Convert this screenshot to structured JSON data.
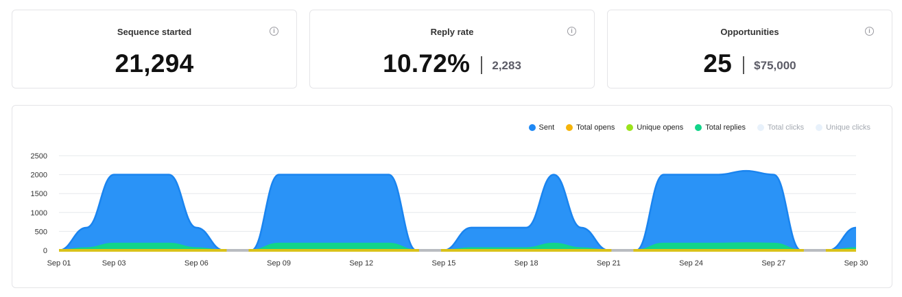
{
  "stats": [
    {
      "label": "Sequence started",
      "value": "21,294",
      "secondary": ""
    },
    {
      "label": "Reply rate",
      "value": "10.72%",
      "secondary": "2,283"
    },
    {
      "label": "Opportunities",
      "value": "25",
      "secondary": "$75,000"
    }
  ],
  "info_icon_glyph": "i",
  "legend": [
    {
      "label": "Sent",
      "color": "#1e88f5",
      "active": true
    },
    {
      "label": "Total opens",
      "color": "#f5b40a",
      "active": true
    },
    {
      "label": "Unique opens",
      "color": "#9be31b",
      "active": true
    },
    {
      "label": "Total replies",
      "color": "#12d48a",
      "active": true
    },
    {
      "label": "Total clicks",
      "color": "#e8f1fb",
      "active": false
    },
    {
      "label": "Unique clicks",
      "color": "#e8f1fb",
      "active": false
    }
  ],
  "chart_data": {
    "type": "area",
    "ylim": [
      0,
      2500
    ],
    "yticks": [
      "0",
      "500",
      "1000",
      "1500",
      "2000",
      "2500"
    ],
    "xticks": [
      "Sep 01",
      "Sep 03",
      "Sep 06",
      "Sep 09",
      "Sep 12",
      "Sep 15",
      "Sep 18",
      "Sep 21",
      "Sep 24",
      "Sep 27",
      "Sep 30"
    ],
    "x": [
      "Sep 01",
      "Sep 02",
      "Sep 03",
      "Sep 04",
      "Sep 05",
      "Sep 06",
      "Sep 07",
      "Sep 08",
      "Sep 09",
      "Sep 10",
      "Sep 11",
      "Sep 12",
      "Sep 13",
      "Sep 14",
      "Sep 15",
      "Sep 16",
      "Sep 17",
      "Sep 18",
      "Sep 19",
      "Sep 20",
      "Sep 21",
      "Sep 22",
      "Sep 23",
      "Sep 24",
      "Sep 25",
      "Sep 26",
      "Sep 27",
      "Sep 28",
      "Sep 29",
      "Sep 30"
    ],
    "series": [
      {
        "name": "Sent",
        "color": "#2a93f7",
        "values": [
          0,
          600,
          2000,
          2000,
          2000,
          600,
          0,
          0,
          2000,
          2000,
          2000,
          2000,
          2000,
          0,
          0,
          600,
          600,
          600,
          2000,
          600,
          0,
          0,
          2000,
          2000,
          2000,
          2100,
          2000,
          0,
          0,
          600
        ]
      },
      {
        "name": "Total replies",
        "color": "#12d48a",
        "values": [
          0,
          60,
          180,
          180,
          180,
          60,
          0,
          0,
          180,
          180,
          180,
          180,
          180,
          0,
          0,
          60,
          60,
          60,
          180,
          60,
          0,
          0,
          180,
          180,
          180,
          190,
          180,
          0,
          0,
          60
        ]
      },
      {
        "name": "Total opens",
        "color": "#d9c21a",
        "values": [
          0,
          0,
          0,
          0,
          0,
          0,
          0,
          0,
          0,
          0,
          0,
          0,
          0,
          0,
          0,
          0,
          0,
          0,
          0,
          0,
          0,
          0,
          0,
          0,
          0,
          0,
          0,
          0,
          0,
          0
        ]
      }
    ]
  }
}
